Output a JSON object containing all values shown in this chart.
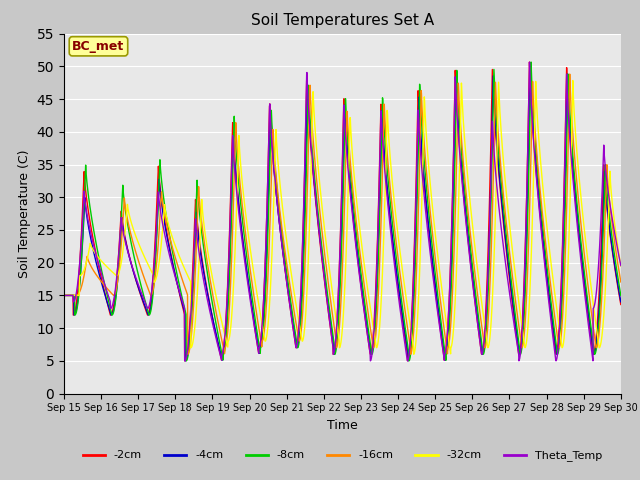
{
  "title": "Soil Temperatures Set A",
  "xlabel": "Time",
  "ylabel": "Soil Temperature (C)",
  "ylim": [
    0,
    55
  ],
  "xlim": [
    0,
    15
  ],
  "series_colors": {
    "-2cm": "#ff0000",
    "-4cm": "#0000cc",
    "-8cm": "#00cc00",
    "-16cm": "#ff8800",
    "-32cm": "#ffff00",
    "Theta_Temp": "#9900cc"
  },
  "annotation_text": "BC_met",
  "annotation_color": "#880000",
  "annotation_bg": "#ffff99",
  "x_tick_labels": [
    "Sep 15",
    "Sep 16",
    "Sep 17",
    "Sep 18",
    "Sep 19",
    "Sep 20",
    "Sep 21",
    "Sep 22",
    "Sep 23",
    "Sep 24",
    "Sep 25",
    "Sep 26",
    "Sep 27",
    "Sep 28",
    "Sep 29",
    "Sep 30"
  ],
  "x_tick_positions": [
    0,
    1,
    2,
    3,
    4,
    5,
    6,
    7,
    8,
    9,
    10,
    11,
    12,
    13,
    14,
    15
  ],
  "yticks": [
    0,
    5,
    10,
    15,
    20,
    25,
    30,
    35,
    40,
    45,
    50,
    55
  ],
  "figsize": [
    6.4,
    4.8
  ],
  "dpi": 100
}
